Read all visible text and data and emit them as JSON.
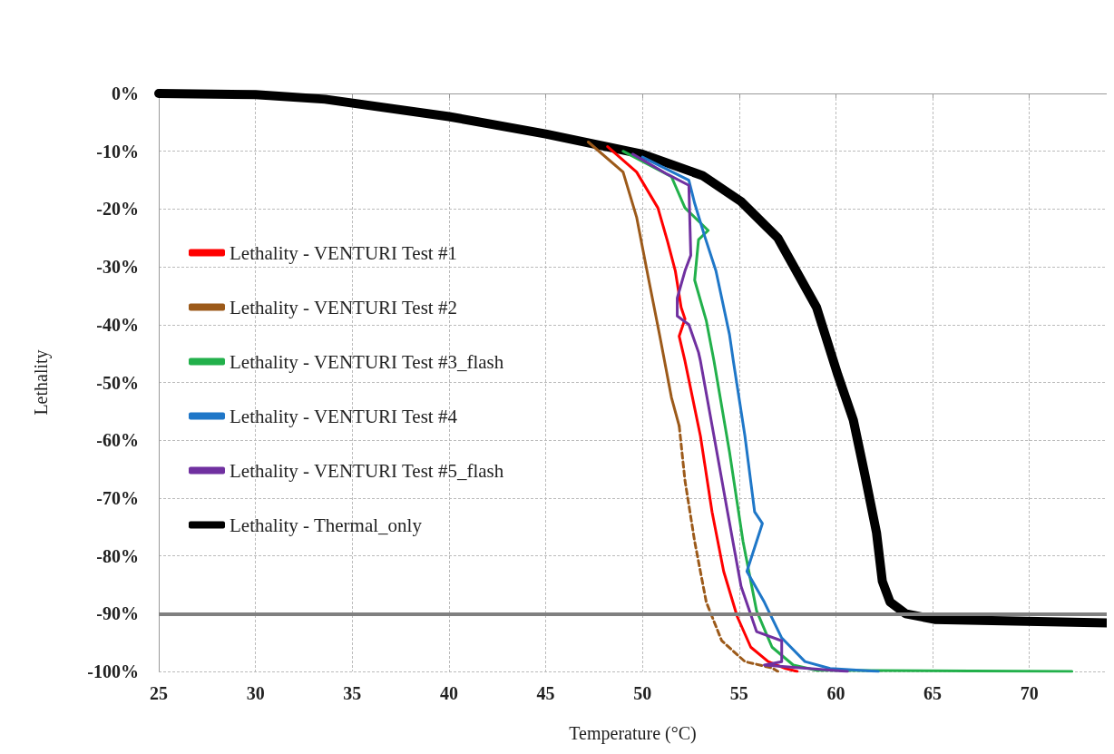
{
  "chart_data": {
    "type": "line",
    "xlabel": "Temperature (°C)",
    "ylabel": "Lethality",
    "xlim": [
      25,
      74
    ],
    "xticks": [
      25,
      30,
      35,
      40,
      45,
      50,
      55,
      60,
      65,
      70
    ],
    "ylim": [
      -100,
      0
    ],
    "yticks": [
      {
        "value": -100,
        "label": "-100%"
      },
      {
        "value": -90,
        "label": "-90%"
      },
      {
        "value": -80,
        "label": "-80%"
      },
      {
        "value": -70,
        "label": "-70%"
      },
      {
        "value": -60,
        "label": "-60%"
      },
      {
        "value": -50,
        "label": "-50%"
      },
      {
        "value": -40,
        "label": "-40%"
      },
      {
        "value": -30,
        "label": "-30%"
      },
      {
        "value": -20,
        "label": "-20%"
      },
      {
        "value": -10,
        "label": "-10%"
      },
      {
        "value": 0,
        "label": "0%"
      }
    ],
    "grid": true,
    "legend": "left",
    "marker": "none",
    "line_style": "solid",
    "ref_lines": [
      {
        "axis": "y",
        "value": -90,
        "color": "#808080"
      }
    ],
    "series": [
      {
        "name": "Lethality - VENTURI Test #1",
        "color": "#ff0000",
        "x": [
          48.2,
          49.7,
          50.8,
          51.3,
          51.7,
          52.0,
          52.2,
          51.9,
          52.2,
          53.0,
          53.6,
          54.2,
          54.9,
          55.6,
          56.5,
          57.4,
          58.0
        ],
        "values": [
          -9.2,
          -13.6,
          -19.8,
          -25.6,
          -30.7,
          -37,
          -39,
          -42,
          -46.3,
          -59.3,
          -72.4,
          -82.7,
          -90.5,
          -95.8,
          -98.3,
          -99.5,
          -100
        ]
      },
      {
        "name": "Lethality - VENTURI Test #2",
        "color": "#9c5a1a",
        "x": [
          47.2,
          49.0,
          49.7,
          50.3,
          50.9,
          51.5,
          51.9
        ],
        "values": [
          -8.4,
          -13.6,
          -21.4,
          -31.8,
          -42,
          -52.6,
          -57.5
        ]
      },
      {
        "color": "#9c5a1a",
        "line_style": "dashed",
        "x": [
          51.9,
          52.2,
          52.7,
          53.3,
          54.1,
          55.3,
          56.7,
          57.0
        ],
        "values": [
          -57.5,
          -67,
          -77.5,
          -88,
          -94.7,
          -98.3,
          -99.4,
          -100
        ]
      },
      {
        "name": "Lethality - VENTURI Test #3_flash",
        "color": "#22b04b",
        "x": [
          49.0,
          51.5,
          52.2,
          53.4,
          52.9,
          52.7,
          53.3,
          53.7,
          54.5,
          55.2,
          55.9,
          56.7,
          57.8,
          59.0,
          72.2
        ],
        "values": [
          -10,
          -14.4,
          -19.8,
          -23.7,
          -25.3,
          -32.3,
          -39.3,
          -46.3,
          -62,
          -77.5,
          -89.5,
          -95.8,
          -98.9,
          -99.8,
          -100
        ]
      },
      {
        "name": "Lethality - VENTURI Test #4",
        "color": "#1f77c8",
        "x": [
          50.0,
          52.4,
          52.7,
          53.2,
          53.8,
          54.5,
          54.7,
          55.3,
          55.8,
          56.2,
          55.4,
          56.3,
          57.2,
          58.4,
          59.7,
          62.2
        ],
        "values": [
          -11,
          -15,
          -19,
          -24.5,
          -30.7,
          -41.7,
          -46.3,
          -59.3,
          -72.4,
          -74.4,
          -82.7,
          -88,
          -94.2,
          -98.3,
          -99.5,
          -100
        ]
      },
      {
        "name": "Lethality - VENTURI Test #5_flash",
        "color": "#7030a0",
        "x": [
          49.5,
          51.3,
          52.4,
          52.5,
          52.2,
          51.8,
          51.8,
          52.4,
          52.9,
          53.0,
          53.7,
          54.4,
          55.1,
          55.9,
          57.2,
          57.2,
          56.3,
          60.6
        ],
        "values": [
          -10.5,
          -14,
          -15.9,
          -28,
          -30.7,
          -35.4,
          -38.5,
          -40,
          -44.8,
          -46.3,
          -59.3,
          -72.4,
          -85.3,
          -93.1,
          -94.7,
          -98.3,
          -98.9,
          -100
        ]
      },
      {
        "name": "Lethality - Thermal_only",
        "color": "#000000",
        "x": [
          25,
          30,
          33.6,
          40,
          45,
          50,
          53.1,
          55.1,
          57,
          59,
          60.1,
          60.9,
          61.5,
          62.1,
          62.4,
          62.8,
          63.6,
          65.1,
          74
        ],
        "values": [
          0,
          -0.2,
          -1,
          -4,
          -7,
          -10.5,
          -14.2,
          -18.7,
          -25,
          -37,
          -48.7,
          -56.5,
          -66,
          -76,
          -84.4,
          -88,
          -90,
          -91,
          -91.6
        ]
      }
    ]
  }
}
